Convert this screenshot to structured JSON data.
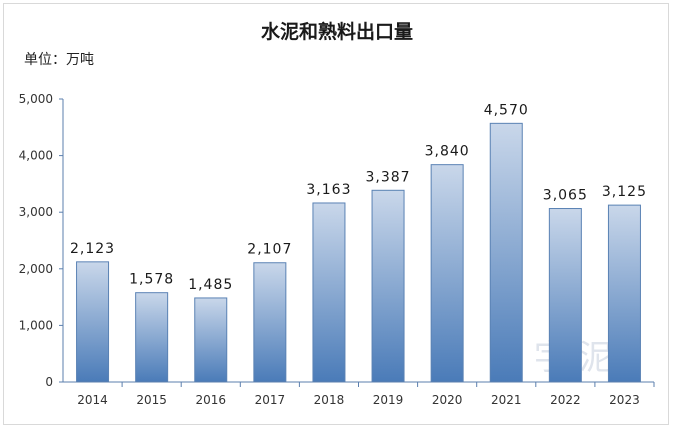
{
  "chart_data": {
    "type": "bar",
    "title": "水泥和熟料出口量",
    "unit_label": "单位：万吨",
    "categories": [
      "2014",
      "2015",
      "2016",
      "2017",
      "2018",
      "2019",
      "2020",
      "2021",
      "2022",
      "2023"
    ],
    "values": [
      2123,
      1578,
      1485,
      2107,
      3163,
      3387,
      3840,
      4570,
      3065,
      3125
    ],
    "value_labels": [
      "2,123",
      "1,578",
      "1,485",
      "2,107",
      "3,163",
      "3,387",
      "3,840",
      "4,570",
      "3,065",
      "3,125"
    ],
    "y_ticks": [
      0,
      1000,
      2000,
      3000,
      4000,
      5000
    ],
    "y_tick_labels": [
      "0",
      "1,000",
      "2,000",
      "3,000",
      "4,000",
      "5,000"
    ],
    "ylim": [
      0,
      5000
    ],
    "grid": false,
    "legend": "none",
    "bar_color_top": "#c9d7ea",
    "bar_color_bottom": "#4a7bb8",
    "bar_border": "#5a82b4",
    "axis_color": "#5b7fae",
    "watermark": "数 字 泥"
  }
}
